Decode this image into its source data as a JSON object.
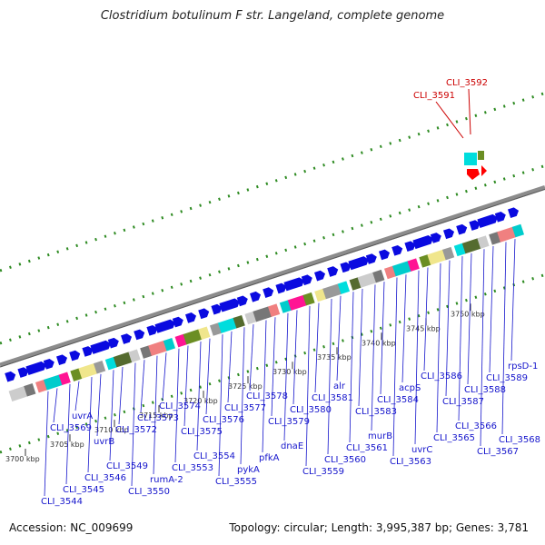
{
  "header": {
    "title": "Clostridium botulinum F str. Langeland, complete genome"
  },
  "footer": {
    "accession": "Accession: NC_009699",
    "summary": "Topology: circular; Length: 3,995,387 bp; Genes: 3,781"
  },
  "colors": {
    "forward_gene": "#0a0ae0",
    "highlight": "#cc0000",
    "backbone": "#8c8c8c",
    "dotted_track": "#2e8b22",
    "gene_label": "#1515cc"
  },
  "scale_ticks": [
    "3700 kbp",
    "3705 kbp",
    "3710 kbp",
    "3715 kbp",
    "3720 kbp",
    "3725 kbp",
    "3730 kbp",
    "3735 kbp",
    "3740 kbp",
    "3745 kbp",
    "3750 kbp"
  ],
  "gene_labels": [
    "CLI_3544",
    "CLI_3545",
    "CLI_3546",
    "CLI_3549",
    "CLI_3550",
    "rumA-2",
    "CLI_3553",
    "CLI_3554",
    "CLI_3555",
    "pykA",
    "pfkA",
    "dnaE",
    "CLI_3559",
    "CLI_3560",
    "CLI_3561",
    "murB",
    "CLI_3563",
    "uvrC",
    "CLI_3565",
    "CLI_3566",
    "CLI_3567",
    "CLI_3568",
    "CLI_3569",
    "uvrA",
    "uvrB",
    "CLI_3572",
    "CLI_3573",
    "CLI_3574",
    "CLI_3575",
    "CLI_3576",
    "CLI_3577",
    "CLI_3578",
    "CLI_3579",
    "CLI_3580",
    "CLI_3581",
    "alr",
    "CLI_3583",
    "CLI_3584",
    "acpS",
    "CLI_3586",
    "CLI_3587",
    "CLI_3588",
    "CLI_3589",
    "rpsD-1"
  ],
  "highlighted_labels": [
    "CLI_3591",
    "CLI_3592"
  ]
}
